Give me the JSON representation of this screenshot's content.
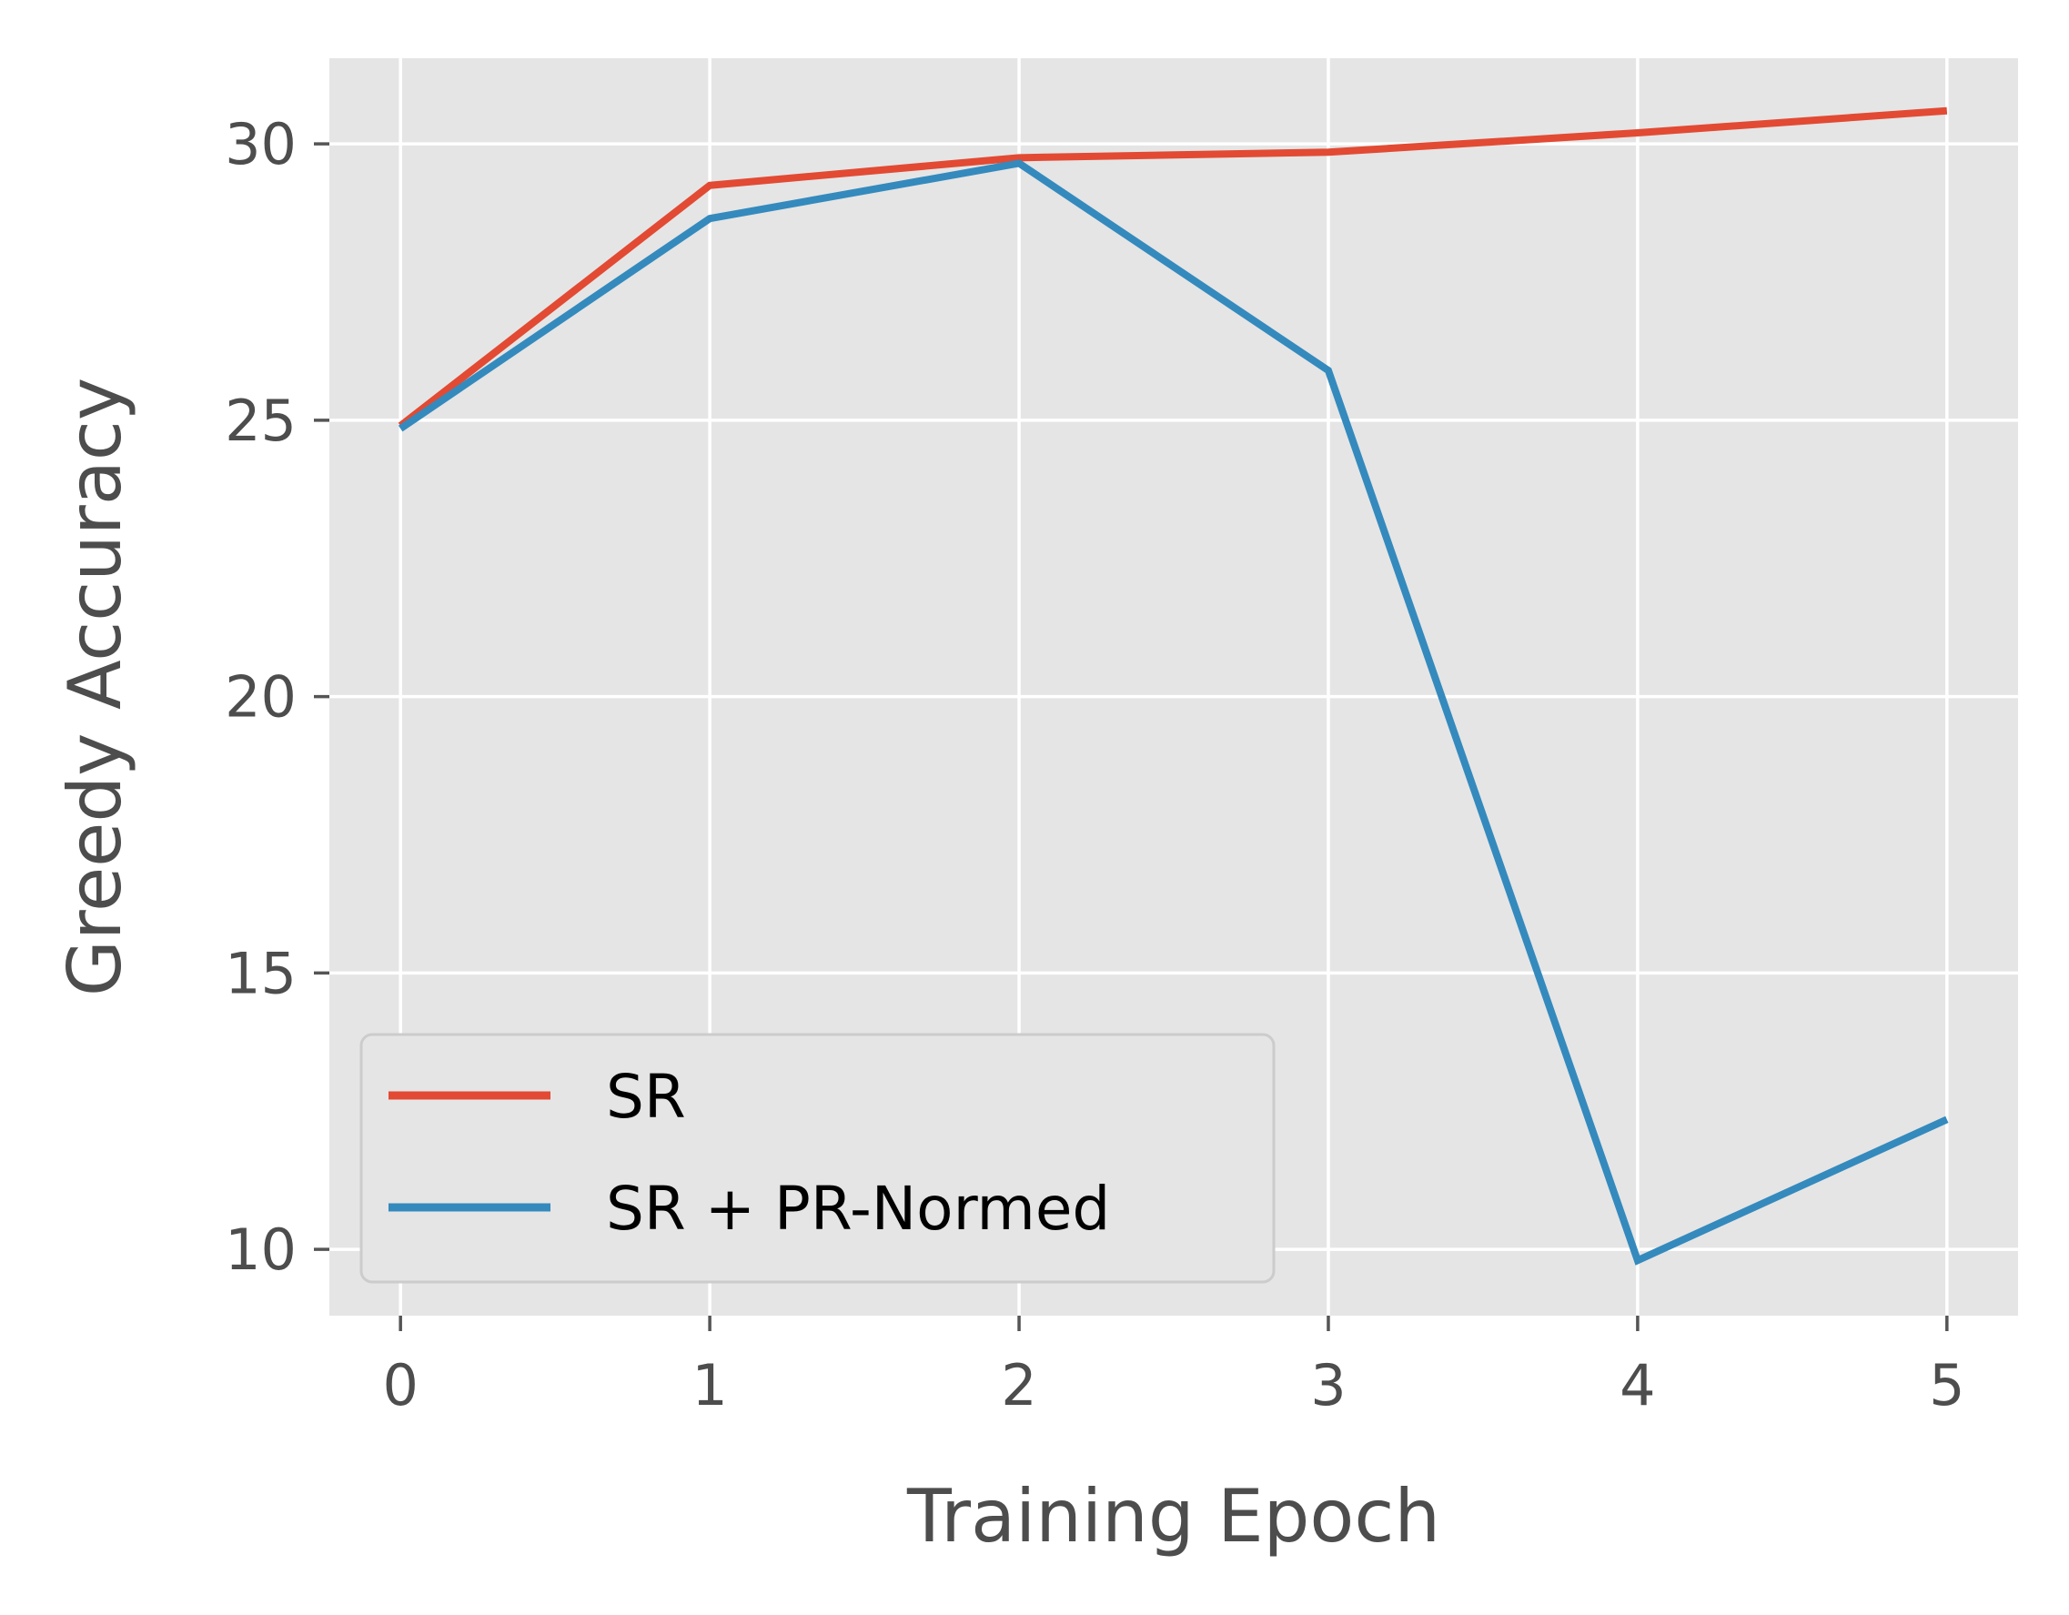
{
  "chart_data": {
    "type": "line",
    "title": "",
    "xlabel": "Training Epoch",
    "ylabel": "Greedy Accuracy",
    "x": [
      0,
      1,
      2,
      3,
      4,
      5
    ],
    "xticks": [
      "0",
      "1",
      "2",
      "3",
      "4",
      "5"
    ],
    "yticks": [
      "10",
      "15",
      "20",
      "25",
      "30"
    ],
    "xlim": [
      -0.23,
      5.23
    ],
    "ylim": [
      8.8,
      31.55
    ],
    "grid": true,
    "legend_position": "lower-left",
    "series": [
      {
        "name": "SR",
        "color": "#e24a33",
        "values": [
          24.9,
          29.25,
          29.75,
          29.85,
          30.2,
          30.6
        ]
      },
      {
        "name": "SR + PR-Normed",
        "color": "#348abd",
        "values": [
          24.85,
          28.65,
          29.65,
          25.9,
          9.8,
          12.35
        ]
      }
    ]
  }
}
